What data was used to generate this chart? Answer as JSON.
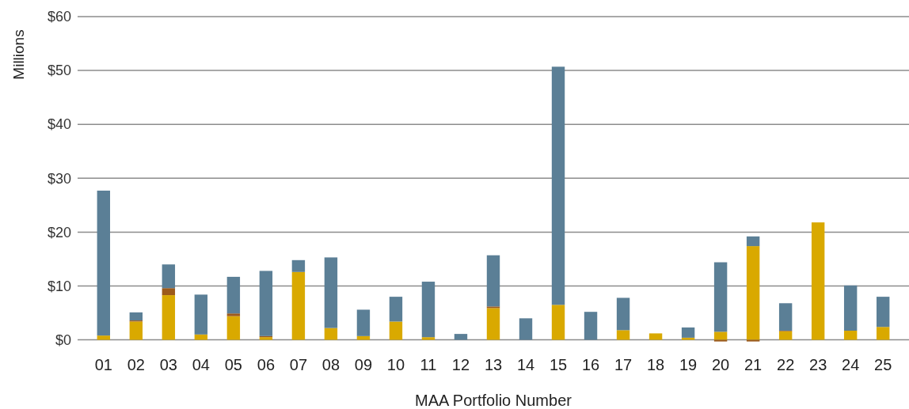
{
  "chart_data": {
    "type": "bar",
    "stacked": true,
    "xlabel": "MAA Portfolio Number",
    "ylabel": "Millions",
    "categories": [
      "01",
      "02",
      "03",
      "04",
      "05",
      "06",
      "07",
      "08",
      "09",
      "10",
      "11",
      "12",
      "13",
      "14",
      "15",
      "16",
      "17",
      "18",
      "19",
      "20",
      "21",
      "22",
      "23",
      "24",
      "25"
    ],
    "series": [
      {
        "color": "#d9a900",
        "values": [
          0.8,
          3.4,
          8.3,
          1.0,
          4.4,
          0.5,
          12.6,
          2.2,
          0.7,
          3.4,
          0.5,
          0,
          5.9,
          0,
          6.5,
          0,
          1.8,
          1.2,
          0.4,
          1.5,
          17.4,
          1.6,
          21.8,
          1.7,
          2.4
        ]
      },
      {
        "color": "#9c5a1a",
        "values": [
          0,
          0.2,
          1.3,
          0,
          0.5,
          0.2,
          0,
          0,
          0,
          0,
          0,
          0,
          0.3,
          0,
          0,
          0,
          0,
          0,
          0,
          -0.3,
          -0.3,
          0.1,
          0,
          0,
          0
        ]
      },
      {
        "color": "#5b7f96",
        "values": [
          26.9,
          1.5,
          4.4,
          7.4,
          6.8,
          12.1,
          2.2,
          13.1,
          4.9,
          4.6,
          10.3,
          1.1,
          9.5,
          4.0,
          44.2,
          5.2,
          6.0,
          0,
          1.9,
          12.9,
          1.8,
          5.1,
          0,
          8.4,
          5.6
        ]
      }
    ],
    "ylim": [
      -0.5,
      60
    ],
    "yticks": [
      {
        "value": 0,
        "label": "$0"
      },
      {
        "value": 10,
        "label": "$10"
      },
      {
        "value": 20,
        "label": "$20"
      },
      {
        "value": 30,
        "label": "$30"
      },
      {
        "value": 40,
        "label": "$40"
      },
      {
        "value": 50,
        "label": "$50"
      },
      {
        "value": 60,
        "label": "$60"
      }
    ],
    "grid": "y"
  }
}
